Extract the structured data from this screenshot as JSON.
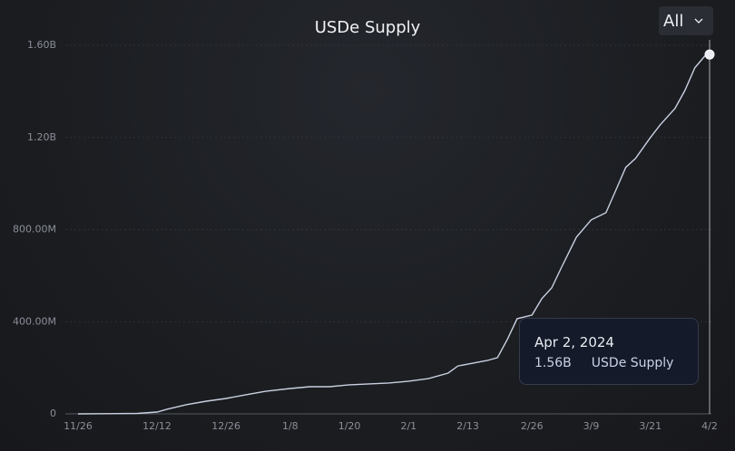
{
  "chart_data": {
    "type": "line",
    "title": "USDe Supply",
    "range_selector": "All",
    "x": [
      "11/26",
      "12/8",
      "12/12",
      "12/14",
      "12/18",
      "12/22",
      "12/26",
      "12/30",
      "1/3",
      "1/8",
      "1/12",
      "1/16",
      "1/20",
      "1/24",
      "1/28",
      "2/1",
      "2/5",
      "2/9",
      "2/11",
      "2/13",
      "2/17",
      "2/19",
      "2/21",
      "2/23",
      "2/26",
      "2/28",
      "3/1",
      "3/3",
      "3/6",
      "3/9",
      "3/12",
      "3/14",
      "3/16",
      "3/18",
      "3/21",
      "3/23",
      "3/26",
      "3/28",
      "3/30",
      "4/1",
      "4/2"
    ],
    "series": [
      {
        "name": "USDe Supply",
        "color": "#c9d0e0",
        "values": [
          0,
          2000000,
          8000000,
          20000000,
          40000000,
          55000000,
          67000000,
          83000000,
          98000000,
          110000000,
          118000000,
          118000000,
          126000000,
          130000000,
          134000000,
          142000000,
          153000000,
          177000000,
          208000000,
          216000000,
          232000000,
          244000000,
          323000000,
          413000000,
          429000000,
          500000000,
          547000000,
          637000000,
          767000000,
          842000000,
          873000000,
          971000000,
          1070000000,
          1109000000,
          1200000000,
          1255000000,
          1326000000,
          1404000000,
          1502000000,
          1553000000,
          1560000000
        ]
      }
    ],
    "xticks": [
      "11/26",
      "12/12",
      "12/26",
      "1/8",
      "1/20",
      "2/1",
      "2/13",
      "2/26",
      "3/9",
      "3/21",
      "4/2"
    ],
    "ylim": [
      0,
      1600000000
    ],
    "yticks": [
      0,
      {
        "value": 400000000,
        "label": "400.00M"
      },
      {
        "value": 800000000,
        "label": "800.00M"
      },
      {
        "value": 1200000000,
        "label": "1.20B"
      },
      {
        "value": 1600000000,
        "label": "1.60B"
      }
    ],
    "grid": true,
    "tooltip": {
      "x": "4/2",
      "date": "Apr 2, 2024",
      "value": 1560000000,
      "label": "1.56B"
    }
  }
}
